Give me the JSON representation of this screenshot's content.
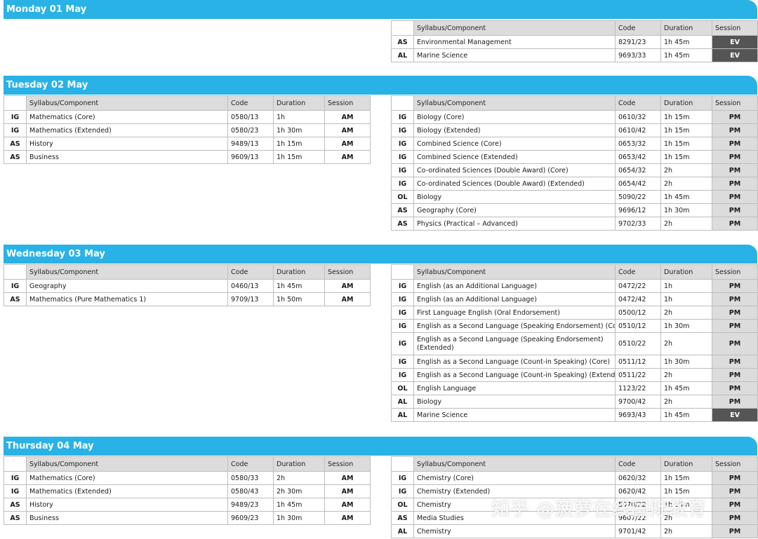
{
  "headers": {
    "syllabus": "Syllabus/Component",
    "code": "Code",
    "duration": "Duration",
    "session": "Session"
  },
  "days": [
    {
      "title": "Monday 01 May",
      "left": [],
      "right": [
        {
          "level": "AS",
          "subject": "Environmental Management",
          "code": "8291/23",
          "duration": "1h 45m",
          "session": "EV"
        },
        {
          "level": "AL",
          "subject": "Marine Science",
          "code": "9693/33",
          "duration": "1h 45m",
          "session": "EV"
        }
      ]
    },
    {
      "title": "Tuesday 02 May",
      "left": [
        {
          "level": "IG",
          "subject": "Mathematics (Core)",
          "code": "0580/13",
          "duration": "1h",
          "session": "AM"
        },
        {
          "level": "IG",
          "subject": "Mathematics (Extended)",
          "code": "0580/23",
          "duration": "1h 30m",
          "session": "AM"
        },
        {
          "level": "AS",
          "subject": "History",
          "code": "9489/13",
          "duration": "1h 15m",
          "session": "AM"
        },
        {
          "level": "AS",
          "subject": "Business",
          "code": "9609/13",
          "duration": "1h 15m",
          "session": "AM"
        }
      ],
      "right": [
        {
          "level": "IG",
          "subject": "Biology (Core)",
          "code": "0610/32",
          "duration": "1h 15m",
          "session": "PM"
        },
        {
          "level": "IG",
          "subject": "Biology (Extended)",
          "code": "0610/42",
          "duration": "1h 15m",
          "session": "PM"
        },
        {
          "level": "IG",
          "subject": "Combined Science (Core)",
          "code": "0653/32",
          "duration": "1h 15m",
          "session": "PM"
        },
        {
          "level": "IG",
          "subject": "Combined Science (Extended)",
          "code": "0653/42",
          "duration": "1h 15m",
          "session": "PM"
        },
        {
          "level": "IG",
          "subject": "Co-ordinated Sciences (Double Award) (Core)",
          "code": "0654/32",
          "duration": "2h",
          "session": "PM"
        },
        {
          "level": "IG",
          "subject": "Co-ordinated Sciences (Double Award) (Extended)",
          "code": "0654/42",
          "duration": "2h",
          "session": "PM"
        },
        {
          "level": "OL",
          "subject": "Biology",
          "code": "5090/22",
          "duration": "1h 45m",
          "session": "PM"
        },
        {
          "level": "AS",
          "subject": "Geography (Core)",
          "code": "9696/12",
          "duration": "1h 30m",
          "session": "PM"
        },
        {
          "level": "AS",
          "subject": "Physics (Practical – Advanced)",
          "code": "9702/33",
          "duration": "2h",
          "session": "PM"
        }
      ]
    },
    {
      "title": "Wednesday 03 May",
      "left": [
        {
          "level": "IG",
          "subject": "Geography",
          "code": "0460/13",
          "duration": "1h 45m",
          "session": "AM"
        },
        {
          "level": "AS",
          "subject": "Mathematics (Pure Mathematics 1)",
          "code": "9709/13",
          "duration": "1h 50m",
          "session": "AM"
        }
      ],
      "right": [
        {
          "level": "IG",
          "subject": "English (as an Additional Language)",
          "code": "0472/22",
          "duration": "1h",
          "session": "PM"
        },
        {
          "level": "IG",
          "subject": "English (as an Additional Language)",
          "code": "0472/42",
          "duration": "1h",
          "session": "PM"
        },
        {
          "level": "IG",
          "subject": "First Language English (Oral Endorsement)",
          "code": "0500/12",
          "duration": "2h",
          "session": "PM"
        },
        {
          "level": "IG",
          "subject": "English as a Second Language (Speaking Endorsement) (Core)",
          "code": "0510/12",
          "duration": "1h 30m",
          "session": "PM"
        },
        {
          "level": "IG",
          "subject": "English as a Second Language (Speaking Endorsement) (Extended)",
          "code": "0510/22",
          "duration": "2h",
          "session": "PM",
          "wrap": true
        },
        {
          "level": "IG",
          "subject": "English as a Second Language (Count-in Speaking) (Core)",
          "code": "0511/12",
          "duration": "1h 30m",
          "session": "PM"
        },
        {
          "level": "IG",
          "subject": "English as a Second Language (Count-in Speaking) (Extended)",
          "code": "0511/22",
          "duration": "2h",
          "session": "PM"
        },
        {
          "level": "OL",
          "subject": "English Language",
          "code": "1123/22",
          "duration": "1h 45m",
          "session": "PM"
        },
        {
          "level": "AL",
          "subject": "Biology",
          "code": "9700/42",
          "duration": "2h",
          "session": "PM"
        },
        {
          "level": "AL",
          "subject": "Marine Science",
          "code": "9693/43",
          "duration": "1h 45m",
          "session": "EV"
        }
      ]
    },
    {
      "title": "Thursday 04 May",
      "left": [
        {
          "level": "IG",
          "subject": "Mathematics (Core)",
          "code": "0580/33",
          "duration": "2h",
          "session": "AM"
        },
        {
          "level": "IG",
          "subject": "Mathematics (Extended)",
          "code": "0580/43",
          "duration": "2h 30m",
          "session": "AM"
        },
        {
          "level": "AS",
          "subject": "History",
          "code": "9489/23",
          "duration": "1h 45m",
          "session": "AM"
        },
        {
          "level": "AS",
          "subject": "Business",
          "code": "9609/23",
          "duration": "1h 30m",
          "session": "AM"
        }
      ],
      "right": [
        {
          "level": "IG",
          "subject": "Chemistry (Core)",
          "code": "0620/32",
          "duration": "1h 15m",
          "session": "PM"
        },
        {
          "level": "IG",
          "subject": "Chemistry (Extended)",
          "code": "0620/42",
          "duration": "1h 15m",
          "session": "PM"
        },
        {
          "level": "OL",
          "subject": "Chemistry",
          "code": "5070/22",
          "duration": "1h 15m",
          "session": "PM"
        },
        {
          "level": "AS",
          "subject": "Media Studies",
          "code": "9607/22",
          "duration": "2h",
          "session": "PM"
        },
        {
          "level": "AL",
          "subject": "Chemistry",
          "code": "9701/42",
          "duration": "2h",
          "session": "PM"
        }
      ]
    }
  ],
  "watermark": "知乎 @菠萝在线国际教育"
}
